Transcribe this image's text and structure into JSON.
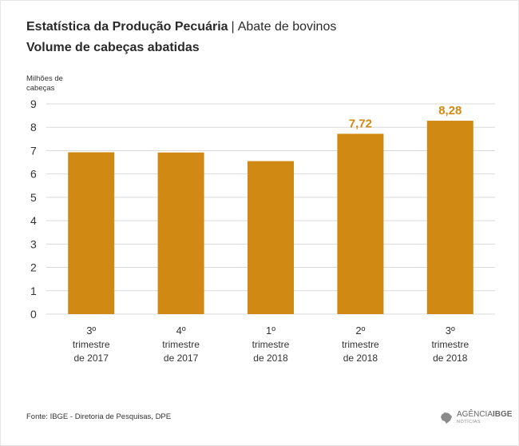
{
  "header": {
    "title_bold": "Estatística da Produção Pecuária",
    "title_sep": "|",
    "title_rest": "Abate de bovinos",
    "subtitle": "Volume de cabeças abatidas"
  },
  "footer": {
    "source": "Fonte: IBGE - Diretoria de Pesquisas, DPE",
    "logo_text_1": "AGÊNCIA",
    "logo_text_2": "IBGE",
    "logo_sub": "NOTÍCIAS"
  },
  "colors": {
    "bar": "#d08a14",
    "highlight_label": "#d08a14",
    "grid": "#d9d9d9",
    "text": "#333333"
  },
  "chart_data": {
    "type": "bar",
    "ylabel_lines": [
      "Milhões de",
      "cabeças"
    ],
    "ylim": [
      0,
      9
    ],
    "yticks": [
      0,
      1,
      2,
      3,
      4,
      5,
      6,
      7,
      8,
      9
    ],
    "grid": true,
    "categories": [
      [
        "3º",
        "trimestre",
        "de 2017"
      ],
      [
        "4º",
        "trimestre",
        "de 2017"
      ],
      [
        "1º",
        "trimestre",
        "de 2018"
      ],
      [
        "2º",
        "trimestre",
        "de 2018"
      ],
      [
        "3º",
        "trimestre",
        "de 2018"
      ]
    ],
    "values": [
      6.93,
      6.92,
      6.55,
      7.72,
      8.28
    ],
    "data_labels": [
      "",
      "",
      "",
      "7,72",
      "8,28"
    ]
  }
}
